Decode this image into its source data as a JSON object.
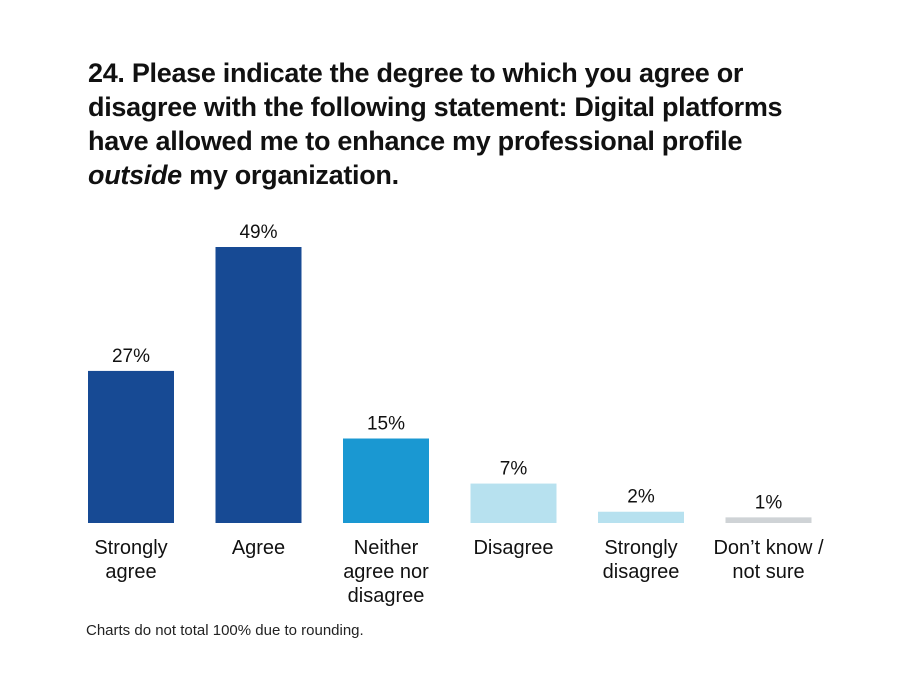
{
  "title": {
    "line_1": "24. Please indicate the degree to which you agree or",
    "line_2": "disagree with the following statement: Digital platforms",
    "line_3": "have allowed me to enhance my professional profile",
    "line_4_emphasis": "outside",
    "line_4_rest": " my organization."
  },
  "footnote": "Charts do not total 100% due to rounding.",
  "chart_data": {
    "type": "bar",
    "categories": [
      [
        "Strongly",
        "agree"
      ],
      [
        "Agree"
      ],
      [
        "Neither",
        "agree nor",
        "disagree"
      ],
      [
        "Disagree"
      ],
      [
        "Strongly",
        "disagree"
      ],
      [
        "Don’t know /",
        "not sure"
      ]
    ],
    "values": [
      27,
      49,
      15,
      7,
      2,
      1
    ],
    "value_labels": [
      "27%",
      "49%",
      "15%",
      "7%",
      "2%",
      "1%"
    ],
    "colors": [
      "#174a94",
      "#174a94",
      "#1a98d2",
      "#b7e1ef",
      "#b7e1ef",
      "#cfd3d6"
    ],
    "ylim": [
      0,
      49
    ],
    "grid": false,
    "legend": "none"
  }
}
